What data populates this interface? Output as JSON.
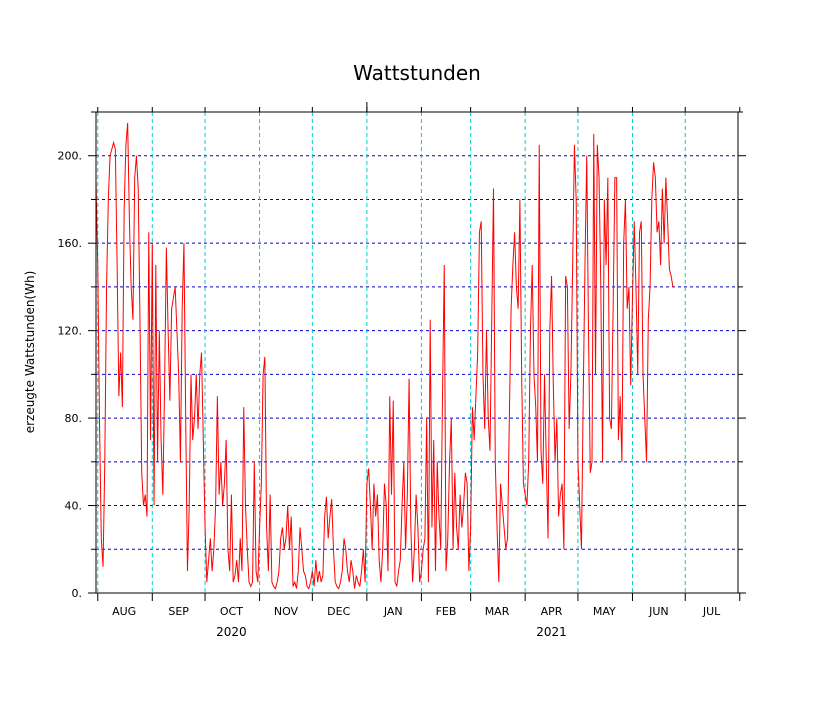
{
  "chart_data": {
    "type": "line",
    "title": "Wattstunden",
    "ylabel": "erzeugte Wattstunden(Wh)",
    "xlabel": "",
    "x_start": "2020-07-31",
    "x_end": "2021-07-31",
    "ylim": [
      0,
      220
    ],
    "yticks": [
      0,
      40,
      80,
      120,
      160,
      200
    ],
    "ytick_labels": [
      "0.",
      "40.",
      "80.",
      "120.",
      "160.",
      "200."
    ],
    "y_gridlines": [
      20,
      40,
      60,
      80,
      100,
      120,
      140,
      160,
      180,
      200
    ],
    "month_boundaries": [
      "2020-08-01",
      "2020-09-01",
      "2020-10-01",
      "2020-11-01",
      "2020-12-01",
      "2021-01-01",
      "2021-02-01",
      "2021-03-01",
      "2021-04-01",
      "2021-05-01",
      "2021-06-01",
      "2021-07-01",
      "2021-08-01"
    ],
    "month_labels": [
      {
        "label": "AUG",
        "date": "2020-08-16"
      },
      {
        "label": "SEP",
        "date": "2020-09-16"
      },
      {
        "label": "OCT",
        "date": "2020-10-16"
      },
      {
        "label": "NOV",
        "date": "2020-11-16"
      },
      {
        "label": "DEC",
        "date": "2020-12-16"
      },
      {
        "label": "JAN",
        "date": "2021-01-16"
      },
      {
        "label": "FEB",
        "date": "2021-02-15"
      },
      {
        "label": "MAR",
        "date": "2021-03-16"
      },
      {
        "label": "APR",
        "date": "2021-04-16"
      },
      {
        "label": "MAY",
        "date": "2021-05-16"
      },
      {
        "label": "JUN",
        "date": "2021-06-16"
      },
      {
        "label": "JUL",
        "date": "2021-07-16"
      }
    ],
    "year_labels": [
      {
        "label": "2020",
        "date": "2020-10-16"
      },
      {
        "label": "2021",
        "date": "2021-04-16"
      }
    ],
    "grid": true,
    "series": [
      {
        "color": "#ff0000",
        "x_start": "2020-07-31",
        "step_days": 1,
        "values": [
          188,
          150,
          78,
          25,
          12,
          60,
          140,
          180,
          200,
          203,
          206,
          203,
          150,
          90,
          110,
          85,
          175,
          205,
          215,
          170,
          140,
          125,
          190,
          200,
          185,
          125,
          55,
          40,
          45,
          35,
          165,
          70,
          160,
          40,
          150,
          60,
          120,
          70,
          45,
          95,
          158,
          120,
          88,
          130,
          135,
          140,
          120,
          100,
          60,
          130,
          160,
          80,
          10,
          40,
          100,
          70,
          80,
          100,
          75,
          100,
          110,
          70,
          30,
          5,
          15,
          25,
          10,
          20,
          40,
          90,
          45,
          60,
          40,
          50,
          70,
          20,
          10,
          45,
          5,
          8,
          15,
          5,
          25,
          10,
          85,
          40,
          20,
          5,
          3,
          5,
          60,
          10,
          5,
          30,
          50,
          100,
          108,
          30,
          10,
          45,
          5,
          3,
          2,
          5,
          10,
          25,
          30,
          20,
          25,
          40,
          20,
          35,
          3,
          5,
          2,
          10,
          30,
          20,
          10,
          8,
          3,
          2,
          5,
          10,
          3,
          15,
          5,
          10,
          5,
          8,
          35,
          44,
          25,
          35,
          43,
          20,
          5,
          3,
          2,
          5,
          10,
          25,
          20,
          10,
          5,
          15,
          10,
          2,
          8,
          5,
          3,
          10,
          20,
          5,
          50,
          57,
          40,
          20,
          50,
          35,
          45,
          15,
          5,
          20,
          50,
          40,
          10,
          90,
          45,
          88,
          5,
          3,
          10,
          15,
          40,
          60,
          20,
          45,
          98,
          30,
          5,
          20,
          45,
          30,
          5,
          10,
          20,
          25,
          80,
          5,
          125,
          30,
          70,
          10,
          60,
          35,
          20,
          90,
          150,
          10,
          25,
          60,
          80,
          20,
          55,
          30,
          20,
          45,
          30,
          40,
          55,
          50,
          10,
          30,
          85,
          70,
          90,
          110,
          165,
          170,
          100,
          75,
          120,
          80,
          65,
          125,
          185,
          60,
          30,
          5,
          50,
          40,
          30,
          20,
          25,
          80,
          130,
          150,
          165,
          140,
          130,
          180,
          100,
          50,
          45,
          40,
          60,
          120,
          150,
          100,
          85,
          60,
          205,
          65,
          50,
          100,
          60,
          25,
          120,
          145,
          95,
          60,
          80,
          35,
          45,
          50,
          20,
          145,
          140,
          75,
          100,
          150,
          205,
          180,
          60,
          40,
          20,
          90,
          150,
          200,
          120,
          55,
          60,
          210,
          100,
          205,
          190,
          140,
          60,
          180,
          150,
          190,
          80,
          75,
          130,
          190,
          190,
          70,
          90,
          60,
          160,
          180,
          130,
          140,
          95,
          135,
          170,
          140,
          100,
          165,
          170,
          100,
          80,
          60,
          125,
          140,
          180,
          197,
          190,
          165,
          170,
          150,
          185,
          160,
          190,
          170,
          148,
          145,
          140
        ]
      }
    ]
  }
}
